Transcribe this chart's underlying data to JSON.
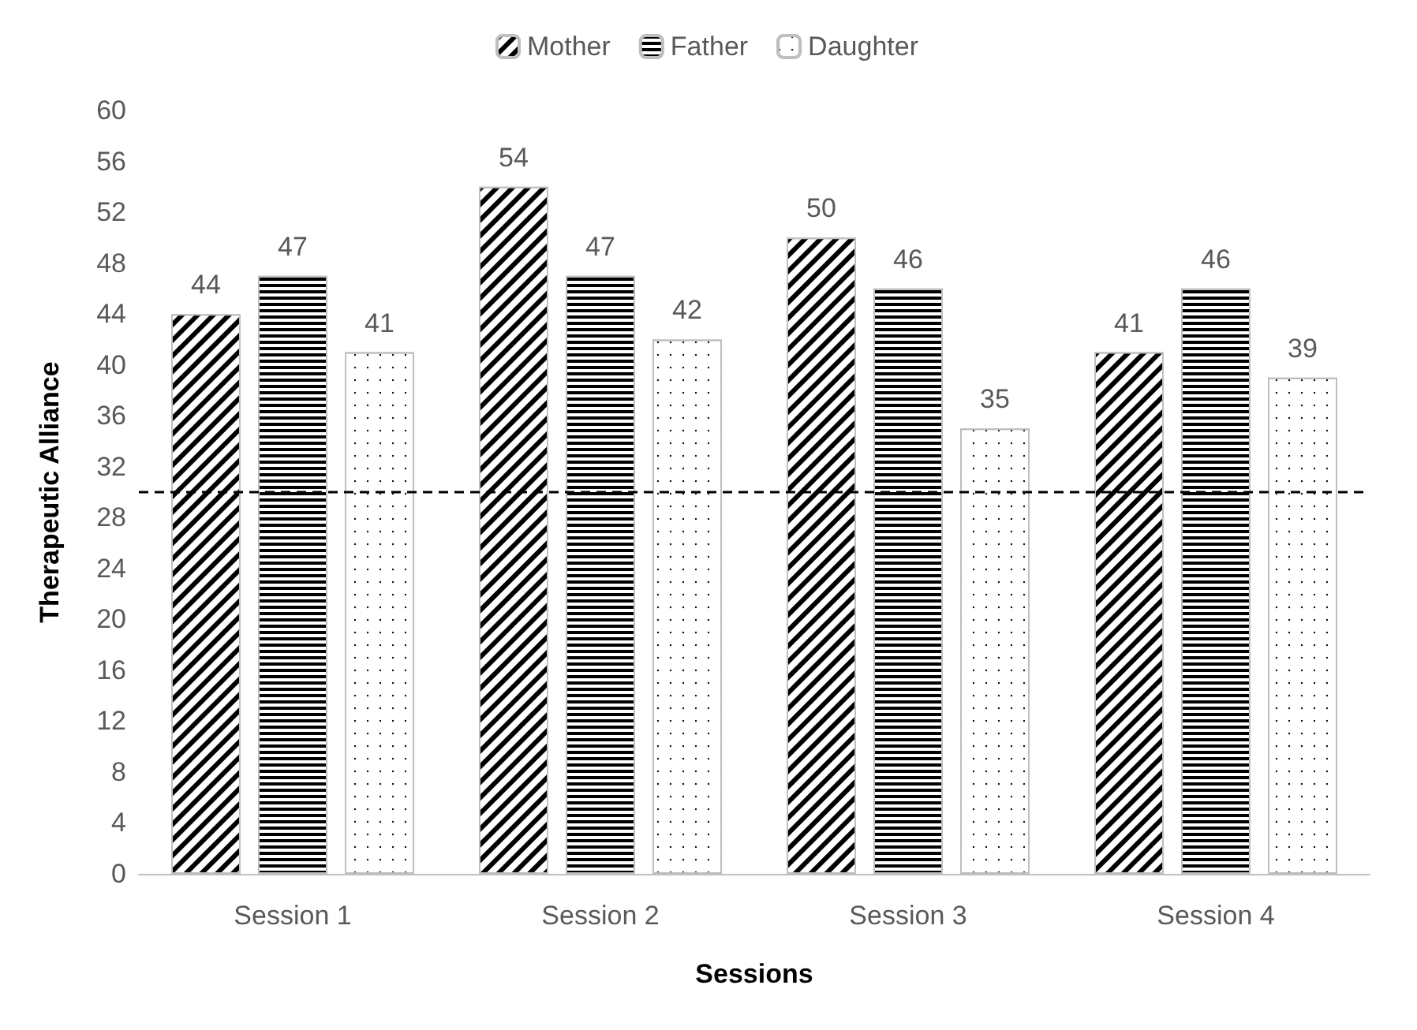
{
  "chart_data": {
    "type": "bar",
    "xlabel": "Sessions",
    "ylabel": "Therapeutic Alliance",
    "categories": [
      "Session 1",
      "Session 2",
      "Session 3",
      "Session 4"
    ],
    "series": [
      {
        "name": "Mother",
        "color": "#ffffff",
        "values": [
          44,
          54,
          50,
          41
        ]
      },
      {
        "name": "Father",
        "color": "#ffffff",
        "values": [
          47,
          47,
          46,
          46
        ]
      },
      {
        "name": "Daughter",
        "color": "#ffffff",
        "values": [
          41,
          42,
          35,
          39
        ]
      }
    ],
    "ylim": [
      0,
      60
    ],
    "yticks": [
      0,
      4,
      8,
      12,
      16,
      20,
      24,
      28,
      32,
      36,
      40,
      44,
      48,
      52,
      56,
      60
    ],
    "grid": false,
    "legend": "top",
    "data_labels": true,
    "ref_lines": [
      {
        "axis": "y",
        "value": 30,
        "line_style": "dashed",
        "color": "#000000"
      }
    ]
  }
}
